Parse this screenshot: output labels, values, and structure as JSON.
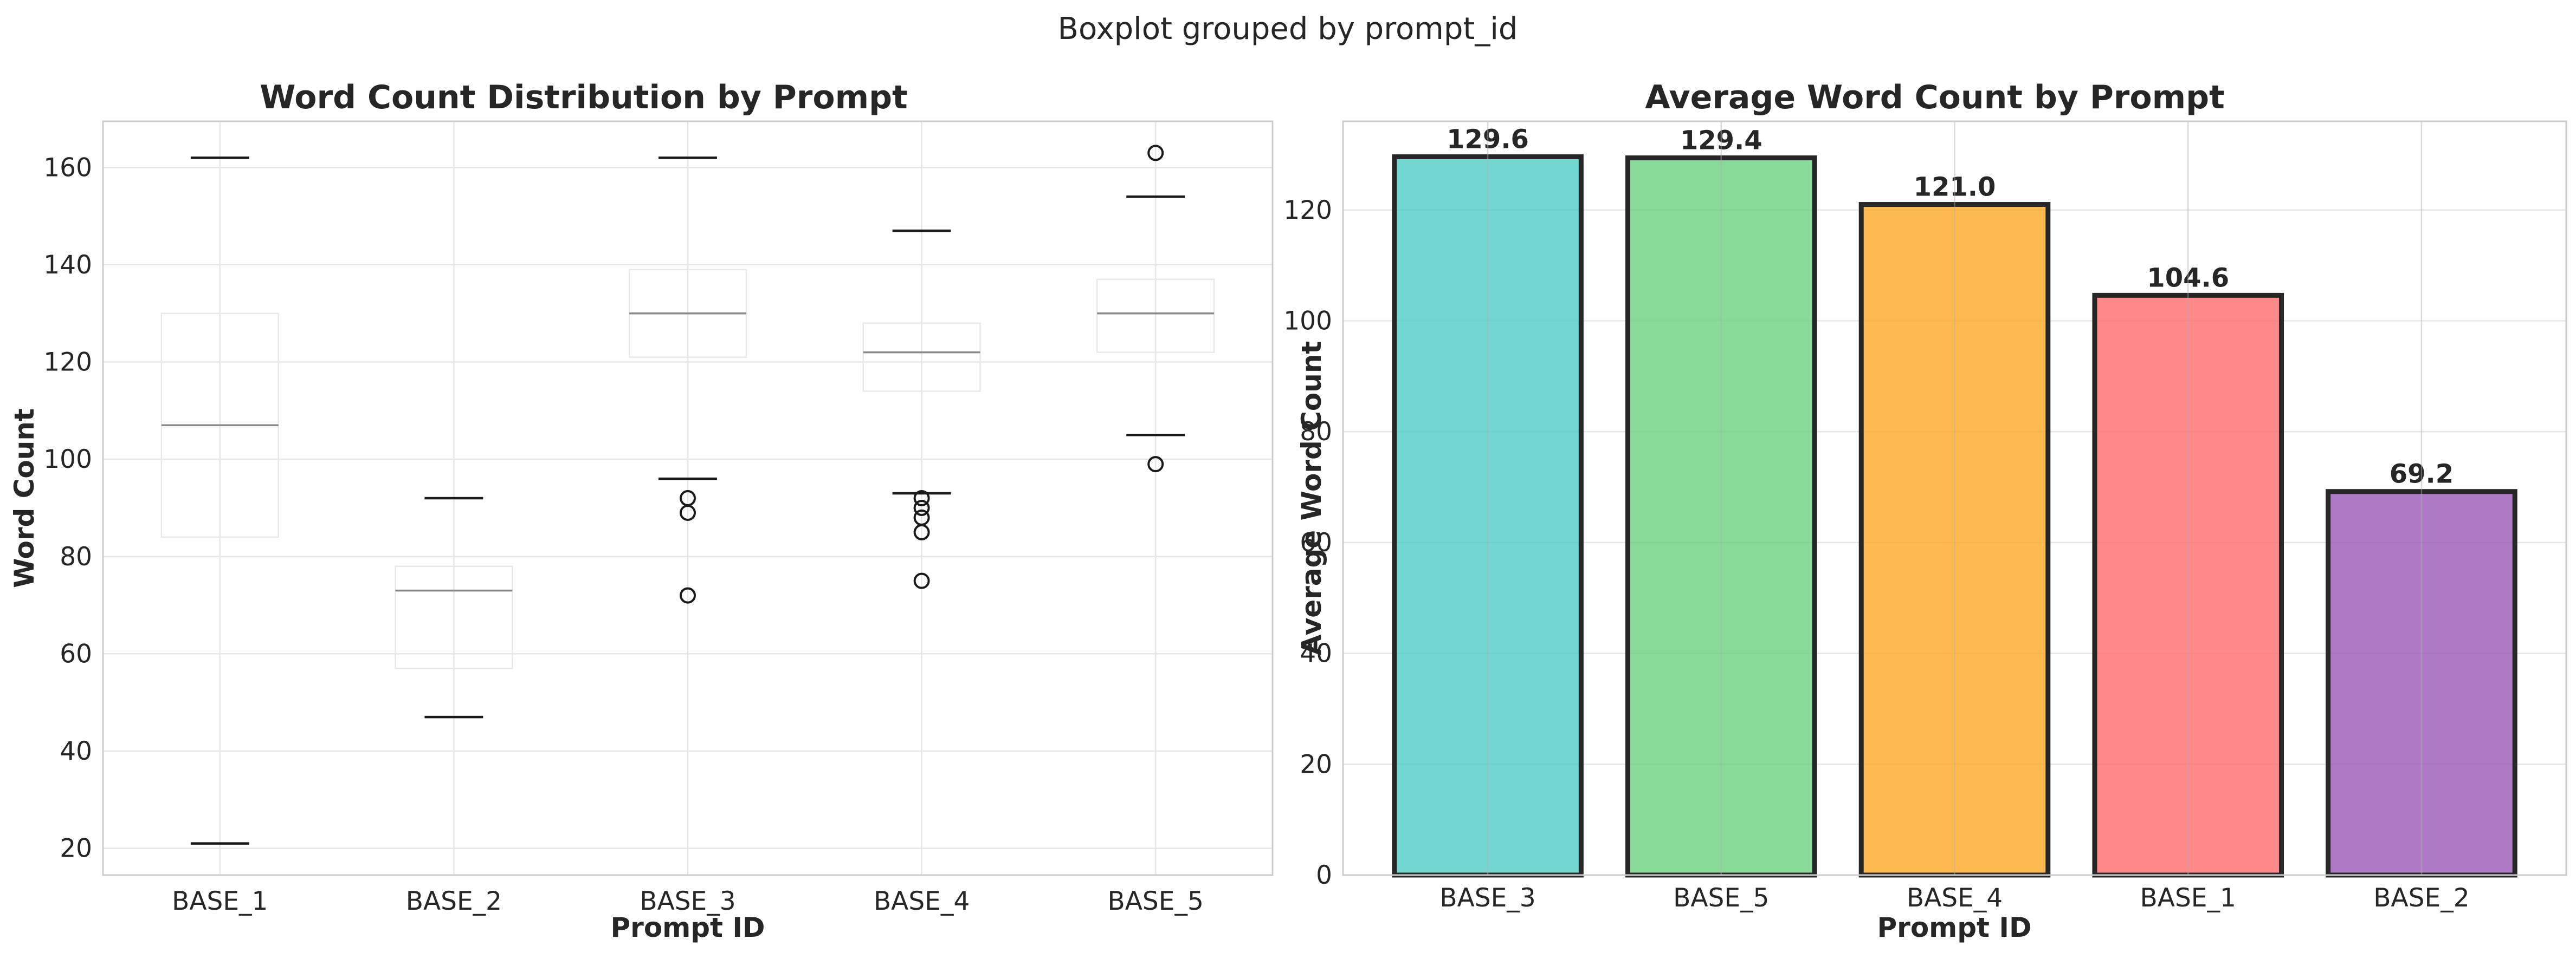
{
  "figure_title": "Boxplot grouped by prompt_id",
  "chart_data": [
    {
      "type": "box",
      "title": "Word Count Distribution by Prompt",
      "xlabel": "Prompt ID",
      "ylabel": "Word Count",
      "categories": [
        "BASE_1",
        "BASE_2",
        "BASE_3",
        "BASE_4",
        "BASE_5"
      ],
      "boxes": [
        {
          "category": "BASE_1",
          "whisker_low": 21,
          "q1": 84,
          "median": 107,
          "q3": 130,
          "whisker_high": 162,
          "outliers": []
        },
        {
          "category": "BASE_2",
          "whisker_low": 47,
          "q1": 57,
          "median": 73,
          "q3": 78,
          "whisker_high": 92,
          "outliers": []
        },
        {
          "category": "BASE_3",
          "whisker_low": 96,
          "q1": 121,
          "median": 130,
          "q3": 139,
          "whisker_high": 162,
          "outliers": [
            72,
            89,
            92
          ]
        },
        {
          "category": "BASE_4",
          "whisker_low": 93,
          "q1": 114,
          "median": 122,
          "q3": 128,
          "whisker_high": 147,
          "outliers": [
            75,
            85,
            88,
            90,
            92
          ]
        },
        {
          "category": "BASE_5",
          "whisker_low": 105,
          "q1": 122,
          "median": 130,
          "q3": 137,
          "whisker_high": 154,
          "outliers": [
            99,
            163
          ]
        }
      ],
      "ylim": [
        14.5,
        169.5
      ],
      "yticks": [
        20,
        40,
        60,
        80,
        100,
        120,
        140,
        160
      ],
      "grid": true
    },
    {
      "type": "bar",
      "title": "Average Word Count by Prompt",
      "xlabel": "Prompt ID",
      "ylabel": "Average Word Count",
      "categories": [
        "BASE_3",
        "BASE_5",
        "BASE_4",
        "BASE_1",
        "BASE_2"
      ],
      "values": [
        129.6,
        129.4,
        121.0,
        104.6,
        69.2
      ],
      "labels": [
        "129.6",
        "129.4",
        "121.0",
        "104.6",
        "69.2"
      ],
      "colors": [
        "#4ECDC4",
        "#6BCF7F",
        "#FFA726",
        "#FF6B6B",
        "#9B59B6"
      ],
      "edgecolor": "#262626",
      "ylim": [
        0,
        136
      ],
      "yticks": [
        0,
        20,
        40,
        60,
        80,
        100,
        120
      ],
      "grid": true
    }
  ]
}
